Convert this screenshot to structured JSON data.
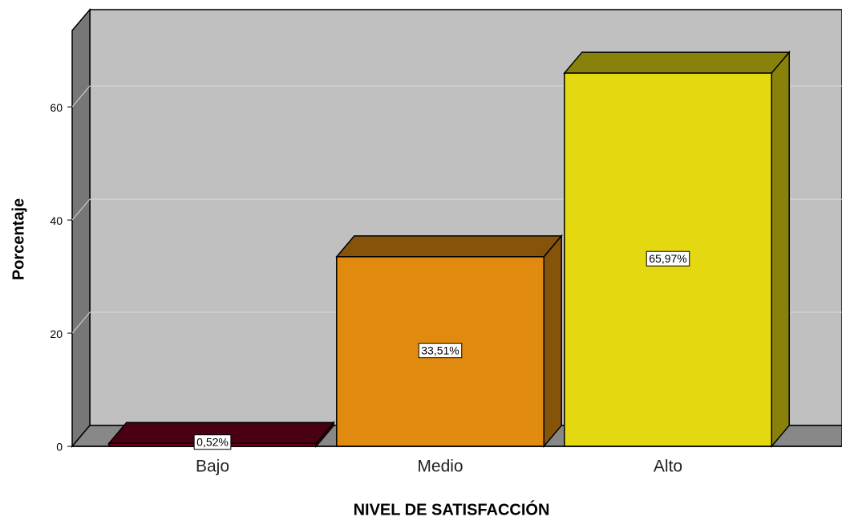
{
  "chart_data": {
    "type": "bar3d",
    "x_label": "NIVEL DE SATISFACCIÓN",
    "y_label": "Porcentaje",
    "categories": [
      "Bajo",
      "Medio",
      "Alto"
    ],
    "values": [
      0.52,
      33.51,
      65.97
    ],
    "value_labels": [
      "0,52%",
      "33,51%",
      "65,97%"
    ],
    "colors": [
      "#7a0020",
      "#e08a10",
      "#e4d810"
    ],
    "ylim": [
      0,
      73.5
    ],
    "yticks": [
      0,
      20,
      40,
      60
    ],
    "grid": true
  }
}
